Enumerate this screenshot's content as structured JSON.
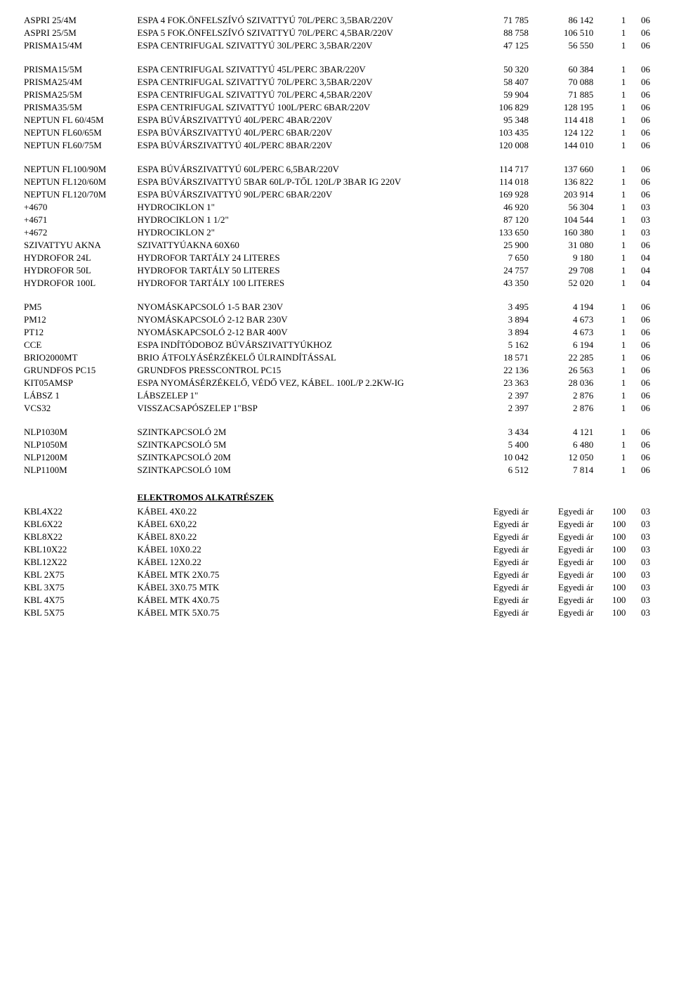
{
  "sections": [
    {
      "rows": [
        {
          "code": "ASPRI 25/4M",
          "desc": "ESPA 4 FOK.ÖNFELSZÍVÓ SZIVATTYÚ 70L/PERC 3,5BAR/220V",
          "p1": "71 785",
          "p2": "86 142",
          "q": "1",
          "c": "06"
        },
        {
          "code": "ASPRI 25/5M",
          "desc": "ESPA 5 FOK.ÖNFELSZÍVÓ SZIVATTYÚ 70L/PERC 4,5BAR/220V",
          "p1": "88 758",
          "p2": "106 510",
          "q": "1",
          "c": "06"
        },
        {
          "code": "PRISMA15/4M",
          "desc": "ESPA CENTRIFUGAL SZIVATTYÚ 30L/PERC 3,5BAR/220V",
          "p1": "47 125",
          "p2": "56 550",
          "q": "1",
          "c": "06"
        }
      ]
    },
    {
      "rows": [
        {
          "code": "PRISMA15/5M",
          "desc": "ESPA CENTRIFUGAL SZIVATTYÚ 45L/PERC 3BAR/220V",
          "p1": "50 320",
          "p2": "60 384",
          "q": "1",
          "c": "06"
        },
        {
          "code": "PRISMA25/4M",
          "desc": "ESPA CENTRIFUGAL SZIVATTYÚ 70L/PERC 3,5BAR/220V",
          "p1": "58 407",
          "p2": "70 088",
          "q": "1",
          "c": "06"
        },
        {
          "code": "PRISMA25/5M",
          "desc": "ESPA CENTRIFUGAL SZIVATTYÚ 70L/PERC 4,5BAR/220V",
          "p1": "59 904",
          "p2": "71 885",
          "q": "1",
          "c": "06"
        },
        {
          "code": "PRISMA35/5M",
          "desc": "ESPA CENTRIFUGAL SZIVATTYÚ 100L/PERC 6BAR/220V",
          "p1": "106 829",
          "p2": "128 195",
          "q": "1",
          "c": "06"
        },
        {
          "code": "NEPTUN FL 60/45M",
          "desc": "ESPA BÚVÁRSZIVATTYÚ 40L/PERC 4BAR/220V",
          "p1": "95 348",
          "p2": "114 418",
          "q": "1",
          "c": "06"
        },
        {
          "code": "NEPTUN FL60/65M",
          "desc": "ESPA BÚVÁRSZIVATTYÚ 40L/PERC 6BAR/220V",
          "p1": "103 435",
          "p2": "124 122",
          "q": "1",
          "c": "06"
        },
        {
          "code": "NEPTUN FL60/75M",
          "desc": "ESPA BÚVÁRSZIVATTYÚ 40L/PERC 8BAR/220V",
          "p1": "120 008",
          "p2": "144 010",
          "q": "1",
          "c": "06"
        }
      ]
    },
    {
      "rows": [
        {
          "code": "NEPTUN FL100/90M",
          "desc": "ESPA BÚVÁRSZIVATTYÚ 60L/PERC 6,5BAR/220V",
          "p1": "114 717",
          "p2": "137 660",
          "q": "1",
          "c": "06"
        },
        {
          "code": "NEPTUN FL120/60M",
          "desc": "ESPA BÚVÁRSZIVATTYÚ 5BAR 60L/P-TŐL 120L/P 3BAR IG 220V",
          "p1": "114 018",
          "p2": "136 822",
          "q": "1",
          "c": "06"
        },
        {
          "code": "NEPTUN FL120/70M",
          "desc": "ESPA BÚVÁRSZIVATTYÚ 90L/PERC 6BAR/220V",
          "p1": "169 928",
          "p2": "203 914",
          "q": "1",
          "c": "06"
        },
        {
          "code": "+4670",
          "desc": "HYDROCIKLON 1\"",
          "p1": "46 920",
          "p2": "56 304",
          "q": "1",
          "c": "03"
        },
        {
          "code": "+4671",
          "desc": "HYDROCIKLON 1 1/2\"",
          "p1": "87 120",
          "p2": "104 544",
          "q": "1",
          "c": "03"
        },
        {
          "code": "+4672",
          "desc": "HYDROCIKLON 2\"",
          "p1": "133 650",
          "p2": "160 380",
          "q": "1",
          "c": "03"
        },
        {
          "code": "SZIVATTYU AKNA",
          "desc": "SZIVATTYÚAKNA 60X60",
          "p1": "25 900",
          "p2": "31 080",
          "q": "1",
          "c": "06"
        },
        {
          "code": "HYDROFOR 24L",
          "desc": "HYDROFOR TARTÁLY 24 LITERES",
          "p1": "7 650",
          "p2": "9 180",
          "q": "1",
          "c": "04"
        },
        {
          "code": "HYDROFOR 50L",
          "desc": "HYDROFOR TARTÁLY 50 LITERES",
          "p1": "24 757",
          "p2": "29 708",
          "q": "1",
          "c": "04"
        },
        {
          "code": "HYDROFOR 100L",
          "desc": "HYDROFOR TARTÁLY 100 LITERES",
          "p1": "43 350",
          "p2": "52 020",
          "q": "1",
          "c": "04"
        }
      ]
    },
    {
      "rows": [
        {
          "code": "PM5",
          "desc": "NYOMÁSKAPCSOLÓ 1-5 BAR 230V",
          "p1": "3 495",
          "p2": "4 194",
          "q": "1",
          "c": "06"
        },
        {
          "code": "PM12",
          "desc": "NYOMÁSKAPCSOLÓ 2-12 BAR 230V",
          "p1": "3 894",
          "p2": "4 673",
          "q": "1",
          "c": "06"
        },
        {
          "code": "PT12",
          "desc": "NYOMÁSKAPCSOLÓ 2-12 BAR 400V",
          "p1": "3 894",
          "p2": "4 673",
          "q": "1",
          "c": "06"
        },
        {
          "code": "CCE",
          "desc": "ESPA INDÍTÓDOBOZ BÚVÁRSZIVATTYÚKHOZ",
          "p1": "5 162",
          "p2": "6 194",
          "q": "1",
          "c": "06"
        },
        {
          "code": "BRIO2000MT",
          "desc": "BRIO ÁTFOLYÁSÉRZÉKELŐ ÚLRAINDÍTÁSSAL",
          "p1": "18 571",
          "p2": "22 285",
          "q": "1",
          "c": "06"
        },
        {
          "code": "GRUNDFOS PC15",
          "desc": "GRUNDFOS PRESSCONTROL PC15",
          "p1": "22 136",
          "p2": "26 563",
          "q": "1",
          "c": "06"
        },
        {
          "code": "KIT05AMSP",
          "desc": "ESPA NYOMÁSÉRZÉKELŐ, VÉDŐ VEZ, KÁBEL. 100L/P 2.2KW-IG",
          "p1": "23 363",
          "p2": "28 036",
          "q": "1",
          "c": "06"
        },
        {
          "code": "LÁBSZ 1",
          "desc": "LÁBSZELEP 1\"",
          "p1": "2 397",
          "p2": "2 876",
          "q": "1",
          "c": "06"
        },
        {
          "code": "VCS32",
          "desc": "VISSZACSAPÓSZELEP 1\"BSP",
          "p1": "2 397",
          "p2": "2 876",
          "q": "1",
          "c": "06"
        }
      ]
    },
    {
      "rows": [
        {
          "code": "NLP1030M",
          "desc": "SZINTKAPCSOLÓ 2M",
          "p1": "3 434",
          "p2": "4 121",
          "q": "1",
          "c": "06"
        },
        {
          "code": "NLP1050M",
          "desc": "SZINTKAPCSOLÓ  5M",
          "p1": "5 400",
          "p2": "6 480",
          "q": "1",
          "c": "06"
        },
        {
          "code": "NLP1200M",
          "desc": "SZINTKAPCSOLÓ 20M",
          "p1": "10 042",
          "p2": "12 050",
          "q": "1",
          "c": "06"
        },
        {
          "code": "NLP1100M",
          "desc": "SZINTKAPCSOLÓ 10M",
          "p1": "6 512",
          "p2": "7 814",
          "q": "1",
          "c": "06"
        }
      ]
    },
    {
      "heading": "ELEKTROMOS ALKATRÉSZEK",
      "rows": [
        {
          "code": "KBL4X22",
          "desc": "KÁBEL 4X0.22",
          "p1": "Egyedi ár",
          "p2": "Egyedi ár",
          "q": "100",
          "c": "03"
        },
        {
          "code": "KBL6X22",
          "desc": "KÁBEL 6X0,22",
          "p1": "Egyedi ár",
          "p2": "Egyedi ár",
          "q": "100",
          "c": "03"
        },
        {
          "code": "KBL8X22",
          "desc": "KÁBEL 8X0.22",
          "p1": "Egyedi ár",
          "p2": "Egyedi ár",
          "q": "100",
          "c": "03"
        },
        {
          "code": "KBL10X22",
          "desc": "KÁBEL 10X0.22",
          "p1": "Egyedi ár",
          "p2": "Egyedi ár",
          "q": "100",
          "c": "03"
        },
        {
          "code": "KBL12X22",
          "desc": "KÁBEL 12X0.22",
          "p1": "Egyedi ár",
          "p2": "Egyedi ár",
          "q": "100",
          "c": "03"
        },
        {
          "code": "KBL 2X75",
          "desc": "KÁBEL MTK 2X0.75",
          "p1": "Egyedi ár",
          "p2": "Egyedi ár",
          "q": "100",
          "c": "03"
        },
        {
          "code": "KBL 3X75",
          "desc": "KÁBEL 3X0.75 MTK",
          "p1": "Egyedi ár",
          "p2": "Egyedi ár",
          "q": "100",
          "c": "03"
        },
        {
          "code": "KBL 4X75",
          "desc": "KÁBEL MTK 4X0.75",
          "p1": "Egyedi ár",
          "p2": "Egyedi ár",
          "q": "100",
          "c": "03"
        },
        {
          "code": "KBL 5X75",
          "desc": "KÁBEL MTK 5X0.75",
          "p1": "Egyedi ár",
          "p2": "Egyedi ár",
          "q": "100",
          "c": "03"
        }
      ]
    }
  ]
}
